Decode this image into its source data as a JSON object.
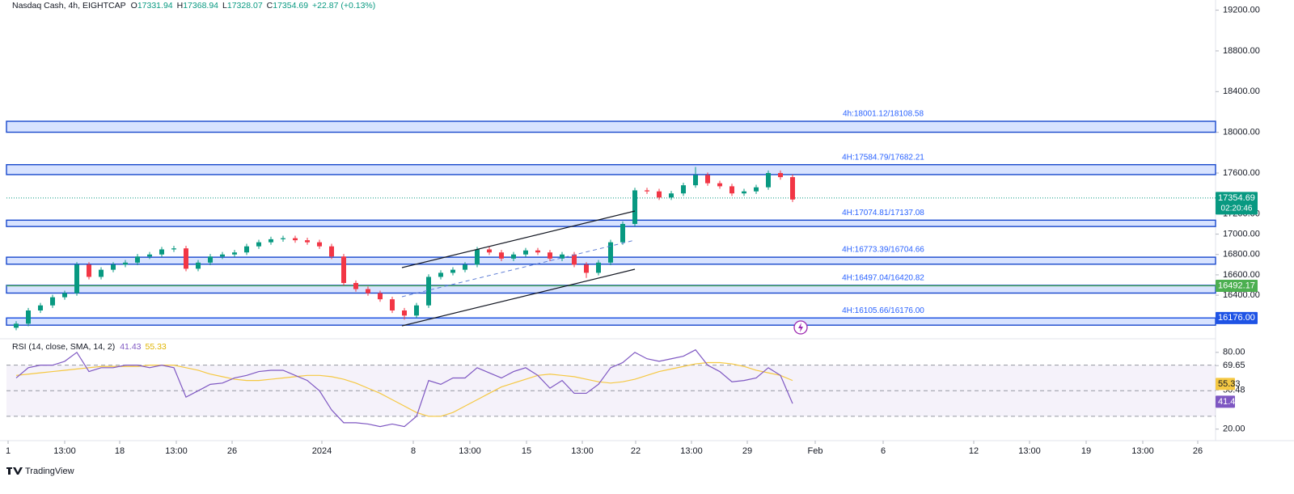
{
  "chart_data": [
    {
      "type": "candlestick",
      "title": "Nasdaq Cash, 4h, EIGHTCAP",
      "legend": [
        {
          "label": "O",
          "value": 17331.94
        },
        {
          "label": "H",
          "value": 17368.94
        },
        {
          "label": "L",
          "value": 17328.07
        },
        {
          "label": "C",
          "value": 17354.69
        }
      ],
      "change": "+22.87 (+0.13%)",
      "up_color": "#089981",
      "down_color": "#f23645",
      "x": [
        2,
        3.5,
        5,
        6.5,
        8,
        9.5,
        11,
        12.5,
        14,
        15.5,
        17,
        18.5,
        20,
        21.5,
        23,
        24.5,
        26,
        27.5,
        29,
        30.5,
        32,
        33.5,
        35,
        36.5,
        38,
        39.5,
        41,
        42.5,
        44,
        45.5,
        47,
        48.5,
        50,
        51.5,
        53,
        54.5,
        56,
        57.5,
        59,
        60.5,
        62,
        63.5,
        65,
        66.5,
        68,
        69.5,
        71,
        72.5,
        74,
        75.5,
        77,
        78.5,
        80,
        81.5,
        83,
        84.5,
        86,
        87.5,
        89,
        90.5,
        92,
        93.5,
        95,
        96.5,
        98
      ],
      "open": [
        16080,
        16120,
        16250,
        16300,
        16380,
        16420,
        16700,
        16580,
        16650,
        16700,
        16720,
        16780,
        16800,
        16850,
        16860,
        16660,
        16720,
        16780,
        16800,
        16820,
        16880,
        16920,
        16950,
        16960,
        16940,
        16920,
        16880,
        16780,
        16520,
        16460,
        16420,
        16360,
        16250,
        16200,
        16300,
        16580,
        16620,
        16650,
        16700,
        16850,
        16820,
        16760,
        16800,
        16840,
        16820,
        16760,
        16800,
        16700,
        16620,
        16720,
        16920,
        17100,
        17430,
        17420,
        17360,
        17400,
        17480,
        17580,
        17500,
        17470,
        17400,
        17420,
        17460,
        17600,
        17560
      ],
      "high": [
        16145,
        16275,
        16325,
        16405,
        16445,
        16725,
        16725,
        16675,
        16725,
        16745,
        16805,
        16825,
        16875,
        16885,
        16885,
        16745,
        16805,
        16825,
        16845,
        16905,
        16945,
        16975,
        16985,
        16985,
        16965,
        16945,
        16905,
        16805,
        16545,
        16485,
        16445,
        16385,
        16275,
        16325,
        16605,
        16645,
        16675,
        16725,
        16875,
        16875,
        16845,
        16825,
        16865,
        16865,
        16845,
        16825,
        16825,
        16725,
        16745,
        16945,
        17125,
        17455,
        17455,
        17445,
        17425,
        17505,
        17660,
        17605,
        17525,
        17495,
        17445,
        17485,
        17625,
        17625,
        17585
      ],
      "low": [
        16055,
        16095,
        16225,
        16275,
        16355,
        16395,
        16555,
        16555,
        16625,
        16675,
        16695,
        16755,
        16775,
        16825,
        16635,
        16635,
        16695,
        16755,
        16775,
        16795,
        16855,
        16895,
        16925,
        16915,
        16895,
        16855,
        16755,
        16495,
        16435,
        16395,
        16335,
        16225,
        16160,
        16175,
        16275,
        16555,
        16595,
        16625,
        16675,
        16795,
        16735,
        16735,
        16775,
        16795,
        16735,
        16735,
        16675,
        16570,
        16595,
        16695,
        16895,
        17075,
        17395,
        17335,
        17335,
        17375,
        17455,
        17475,
        17445,
        17375,
        17375,
        17395,
        17435,
        17535,
        17315
      ],
      "close": [
        16120,
        16250,
        16300,
        16380,
        16420,
        16700,
        16580,
        16650,
        16700,
        16720,
        16780,
        16800,
        16850,
        16860,
        16660,
        16720,
        16780,
        16800,
        16820,
        16880,
        16920,
        16950,
        16960,
        16940,
        16920,
        16880,
        16780,
        16520,
        16460,
        16420,
        16360,
        16250,
        16200,
        16300,
        16580,
        16620,
        16650,
        16700,
        16850,
        16820,
        16760,
        16800,
        16840,
        16820,
        16760,
        16800,
        16700,
        16620,
        16720,
        16920,
        17100,
        17430,
        17420,
        17360,
        17400,
        17480,
        17580,
        17500,
        17470,
        17400,
        17420,
        17460,
        17600,
        17560,
        17340
      ],
      "xlim": [
        0,
        150
      ],
      "xticks": [
        {
          "value": 1,
          "label": "1"
        },
        {
          "value": 8,
          "label": "13:00"
        },
        {
          "value": 14.8,
          "label": "18"
        },
        {
          "value": 21.8,
          "label": "13:00"
        },
        {
          "value": 28.7,
          "label": "26"
        },
        {
          "value": 39.8,
          "label": "2024"
        },
        {
          "value": 51.1,
          "label": "8"
        },
        {
          "value": 58.1,
          "label": "13:00"
        },
        {
          "value": 65.1,
          "label": "15"
        },
        {
          "value": 72,
          "label": "13:00"
        },
        {
          "value": 78.6,
          "label": "22"
        },
        {
          "value": 85.5,
          "label": "13:00"
        },
        {
          "value": 92.4,
          "label": "29"
        },
        {
          "value": 100.8,
          "label": "Feb"
        },
        {
          "value": 109.2,
          "label": "6"
        },
        {
          "value": 120.4,
          "label": "12"
        },
        {
          "value": 127.3,
          "label": "13:00"
        },
        {
          "value": 134.3,
          "label": "19"
        },
        {
          "value": 141.3,
          "label": "13:00"
        },
        {
          "value": 148.1,
          "label": "26"
        }
      ],
      "ylim": [
        15980,
        19300
      ],
      "yticks": [
        {
          "value": 19200,
          "label": "19200.00"
        },
        {
          "value": 18800,
          "label": "18800.00"
        },
        {
          "value": 18400,
          "label": "18400.00"
        },
        {
          "value": 18000,
          "label": "18000.00"
        },
        {
          "value": 17600,
          "label": "17600.00"
        },
        {
          "value": 17200,
          "label": "17200.00"
        },
        {
          "value": 17000,
          "label": "17000.00"
        },
        {
          "value": 16800,
          "label": "16800.00"
        },
        {
          "value": 16600,
          "label": "16600.00"
        },
        {
          "value": 16400,
          "label": "16400.00"
        }
      ],
      "zones": [
        {
          "label": "4h:18001.12/18108.58",
          "from": 18001.12,
          "to": 18108.58
        },
        {
          "label": "4H:17584.79/17682.21",
          "from": 17584.79,
          "to": 17682.21
        },
        {
          "label": "4H:17074.81/17137.08",
          "from": 17074.81,
          "to": 17137.08
        },
        {
          "label": "4H:16773.39/16704.66",
          "from": 16773.39,
          "to": 16704.66
        },
        {
          "label": "4H:16497.04/16420.82",
          "from": 16497.04,
          "to": 16420.82
        },
        {
          "label": "4H:16105.66/16176.00",
          "from": 16105.66,
          "to": 16176
        }
      ],
      "levels": [
        {
          "value": 17354.69,
          "timer": "02:20:46",
          "color": "#089981"
        },
        {
          "value": 16492.17,
          "color": "#4caf50"
        },
        {
          "value": 16176,
          "label": "16176.00",
          "color": "#1e53e5"
        }
      ],
      "brand": "TradingView"
    },
    {
      "type": "line",
      "title": "RSI (14, close, SMA, 14, 2)",
      "series": [
        {
          "color": "#7e57c2",
          "values": [
            60,
            68,
            70,
            70,
            73,
            80,
            65,
            68,
            68,
            70,
            70,
            68,
            70,
            68,
            45,
            50,
            55,
            56,
            60,
            62,
            65,
            66,
            66,
            62,
            58,
            50,
            35,
            25,
            25,
            24,
            22,
            24,
            22,
            30,
            58,
            55,
            60,
            60,
            68,
            64,
            60,
            65,
            68,
            62,
            52,
            58,
            48,
            48,
            55,
            68,
            72,
            80,
            75,
            73,
            75,
            77,
            82,
            70,
            65,
            57,
            58,
            60,
            68,
            62,
            40
          ]
        },
        {
          "color": "#f5c842",
          "values": [
            62,
            63,
            64,
            65,
            66,
            67,
            68,
            69,
            69,
            69,
            69,
            70,
            70,
            70,
            68,
            66,
            63,
            61,
            59,
            58,
            58,
            59,
            60,
            61,
            62,
            62,
            61,
            59,
            56,
            52,
            48,
            43,
            38,
            33,
            30,
            30,
            33,
            38,
            43,
            48,
            53,
            56,
            59,
            62,
            63,
            62,
            61,
            59,
            57,
            56,
            57,
            59,
            62,
            65,
            67,
            69,
            71,
            72,
            72,
            71,
            69,
            66,
            64,
            62,
            58
          ]
        }
      ],
      "current": [
        {
          "value": 41.43,
          "color": "#7e57c2"
        },
        {
          "value": 55.33,
          "color": "#f5c842"
        }
      ],
      "bands": [
        70,
        50,
        30
      ],
      "ylim": [
        11,
        90
      ],
      "yticks": [
        {
          "value": 80,
          "label": "80.00"
        },
        69.65,
        50.48,
        {
          "value": 20,
          "label": "20.00"
        }
      ]
    }
  ]
}
